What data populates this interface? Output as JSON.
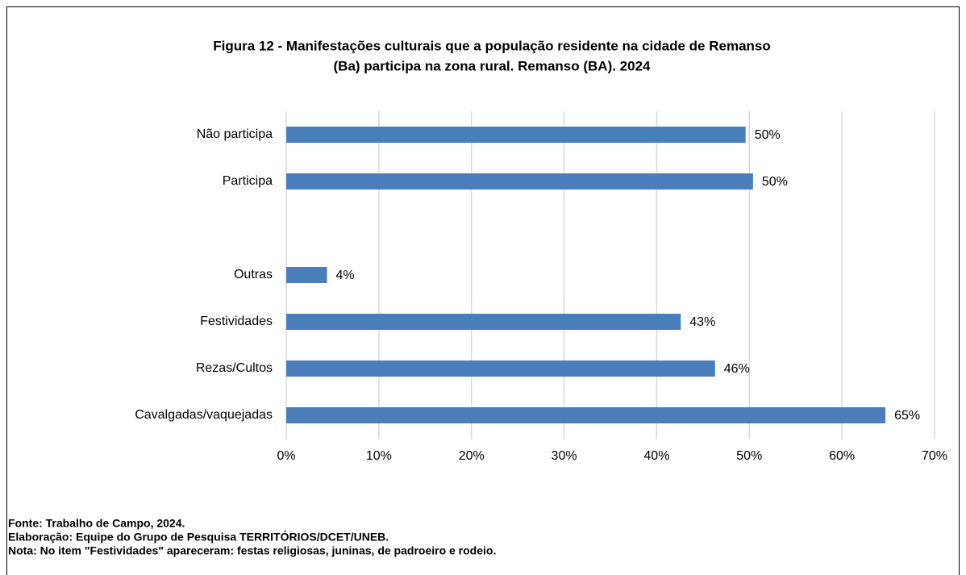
{
  "chart_data": {
    "type": "hbar",
    "title": [
      "Figura 12 - Manifestações culturais que a população residente na cidade de Remanso",
      "(Ba) participa na zona rural. Remanso (BA). 2024"
    ],
    "categories": [
      "Não participa",
      "Participa",
      null,
      "Outras",
      "Festividades",
      "Rezas/Cultos",
      "Cavalgadas/vaquejadas"
    ],
    "values": [
      49.6,
      50.4,
      null,
      4.4,
      42.6,
      46.3,
      64.7
    ],
    "value_labels": [
      "50%",
      "50%",
      null,
      "4%",
      "43%",
      "46%",
      "65%"
    ],
    "color": "#4a7ebb",
    "xlim": [
      0,
      70
    ],
    "xticks": [
      {
        "value": 0,
        "label": "0%"
      },
      {
        "value": 10,
        "label": "10%"
      },
      {
        "value": 20,
        "label": "20%"
      },
      {
        "value": 30,
        "label": "30%"
      },
      {
        "value": 40,
        "label": "40%"
      },
      {
        "value": 50,
        "label": "50%"
      },
      {
        "value": 60,
        "label": "60%"
      },
      {
        "value": 70,
        "label": "70%"
      }
    ],
    "grid": true,
    "notes": [
      "Fonte: Trabalho de  Campo, 2024.",
      "Elaboração: Equipe do Grupo de Pesquisa TERRITÓRIOS/DCET/UNEB.",
      "Nota: No item \"Festividades\" apareceram: festas religiosas, juninas, de padroeiro e rodeio."
    ]
  }
}
